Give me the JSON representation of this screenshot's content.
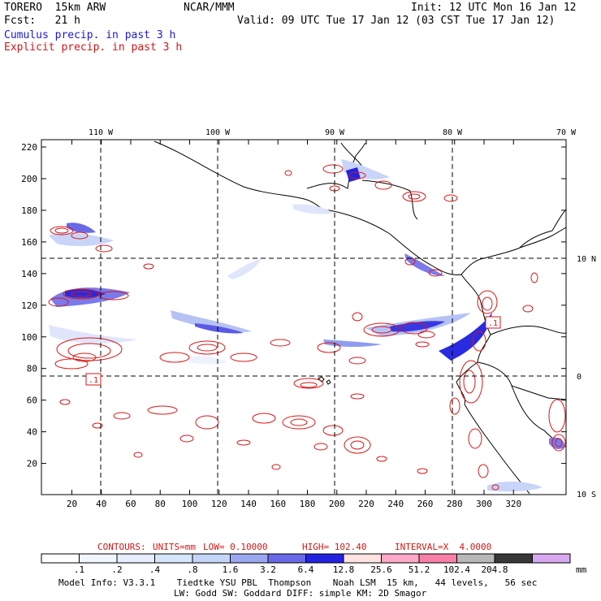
{
  "header": {
    "model": "TORERO  15km ARW",
    "org": "NCAR/MMM",
    "init": "Init: 12 UTC Mon 16 Jan 12",
    "fcst": "Fcst:   21 h",
    "valid": "Valid: 09 UTC Tue 17 Jan 12 (03 CST Tue 17 Jan 12)",
    "cumulus_label": "Cumulus precip. in past 3 h",
    "explicit_label": "Explicit precip. in past 3 h"
  },
  "map": {
    "lon_labels": [
      "110 W",
      "100 W",
      "90 W",
      "80 W",
      "70 W"
    ],
    "lat_labels": [
      "10 N",
      "0",
      "10 S"
    ],
    "y_ticks": [
      "220",
      "200",
      "180",
      "160",
      "140",
      "120",
      "100",
      "80",
      "60",
      "40",
      "20"
    ],
    "x_ticks": [
      "20",
      "40",
      "60",
      "80",
      "100",
      "120",
      "140",
      "160",
      "180",
      "200",
      "220",
      "240",
      "260",
      "280",
      "300",
      "320"
    ],
    "contour_labels": [
      ".1",
      ".1"
    ]
  },
  "contours_line": {
    "contours": "CONTOURS:",
    "units": "UNITS=mm",
    "low": "LOW= 0.10000",
    "high": "HIGH= 102.40",
    "interval": "INTERVAL=X  4.0000"
  },
  "colorbar": {
    "unit": "mm",
    "labels": [
      ".1",
      ".2",
      ".4",
      ".8",
      "1.6",
      "3.2",
      "6.4",
      "12.8",
      "25.6",
      "51.2",
      "102.4",
      "204.8"
    ],
    "colors": [
      "#ffffff",
      "#f2f6ff",
      "#e6eeff",
      "#d6e6fb",
      "#c4d6f8",
      "#9aa8f0",
      "#6a6ae8",
      "#2222e0",
      "#ffe2e2",
      "#ffa8c8",
      "#f880a8",
      "#b8b8b8",
      "#383838",
      "#d8a8f0"
    ]
  },
  "footer": {
    "line1": "Model Info: V3.3.1    Tiedtke YSU PBL  Thompson    Noah LSM  15 km,   44 levels,   56 sec",
    "line2": "LW: Godd SW: Goddard DIFF: simple KM: 2D Smagor"
  }
}
